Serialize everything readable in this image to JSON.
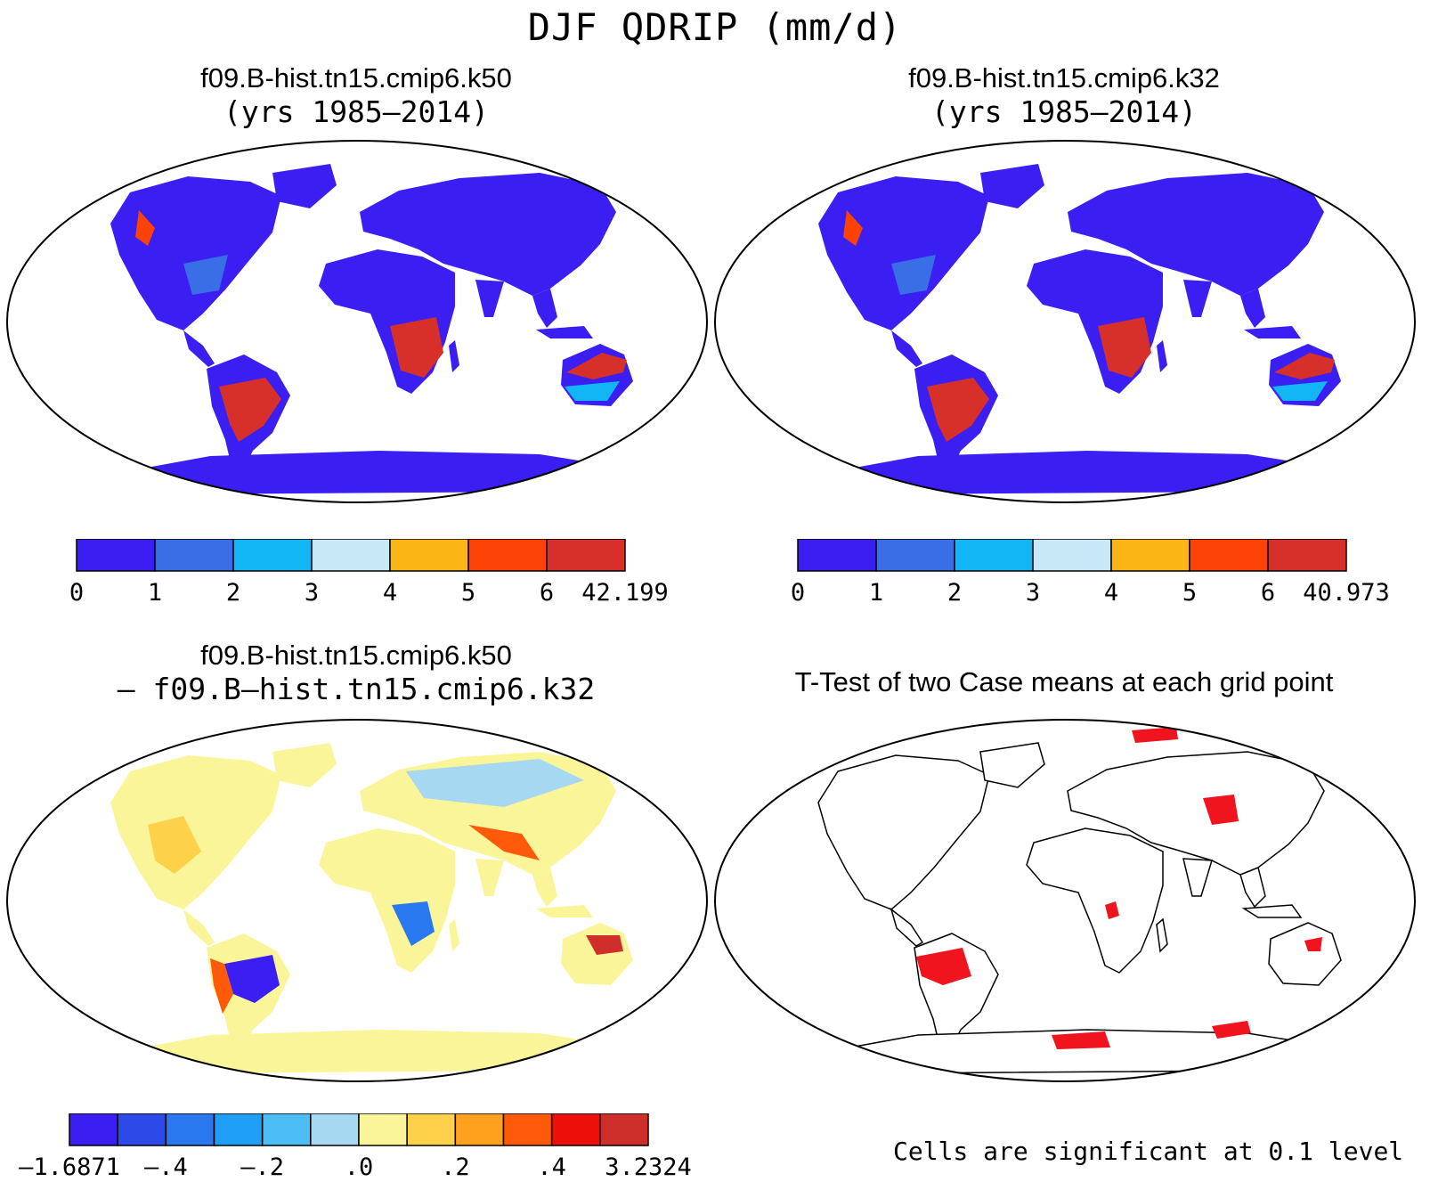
{
  "title": "DJF QDRIP (mm/d)",
  "panels": {
    "top_left": {
      "case": "f09.B-hist.tn15.cmip6.k50",
      "years": "(yrs 1985–2014)"
    },
    "top_right": {
      "case": "f09.B-hist.tn15.cmip6.k32",
      "years": "(yrs 1985–2014)"
    },
    "bottom_left": {
      "case": "f09.B-hist.tn15.cmip6.k50",
      "minus": "– f09.B–hist.tn15.cmip6.k32"
    },
    "bottom_right": {
      "title": "T-Test of two Case means at each grid point",
      "footnote": "Cells are significant at 0.1 level"
    }
  },
  "colorbars": {
    "top_left": {
      "colors": [
        "#3a1ef2",
        "#3a6ee6",
        "#12b6f5",
        "#c9e8f7",
        "#fbb514",
        "#fc4206",
        "#d7302b"
      ],
      "labels": [
        "0",
        "1",
        "2",
        "3",
        "4",
        "5",
        "6",
        "42.199"
      ]
    },
    "top_right": {
      "colors": [
        "#3a1ef2",
        "#3a6ee6",
        "#12b6f5",
        "#c9e8f7",
        "#fbb514",
        "#fc4206",
        "#d7302b"
      ],
      "labels": [
        "0",
        "1",
        "2",
        "3",
        "4",
        "5",
        "6",
        "40.973"
      ]
    },
    "bottom_left": {
      "colors": [
        "#3a1ef2",
        "#2b4ae8",
        "#2a78f0",
        "#1f9ef7",
        "#4cbdf5",
        "#a6d8f2",
        "#fbf59a",
        "#fed14b",
        "#fea21e",
        "#fe5a0a",
        "#ed100a",
        "#cf2f2b"
      ],
      "labels": [
        "–1.6871",
        "–.4",
        "–.2",
        ".0",
        ".2",
        ".4",
        "3.2324"
      ],
      "label_boundaries": [
        0,
        2,
        4,
        6,
        8,
        10,
        12
      ]
    }
  },
  "map_legend": {
    "abs": {
      "low": "#3a1ef2",
      "mid": "#3a6ee6",
      "high": "#d7302b"
    },
    "diff": {
      "base": "#fbf59a",
      "neg": "#3a1ef2",
      "pos": "#fe5a0a"
    },
    "ttest": {
      "significant": "#f0141e"
    }
  }
}
